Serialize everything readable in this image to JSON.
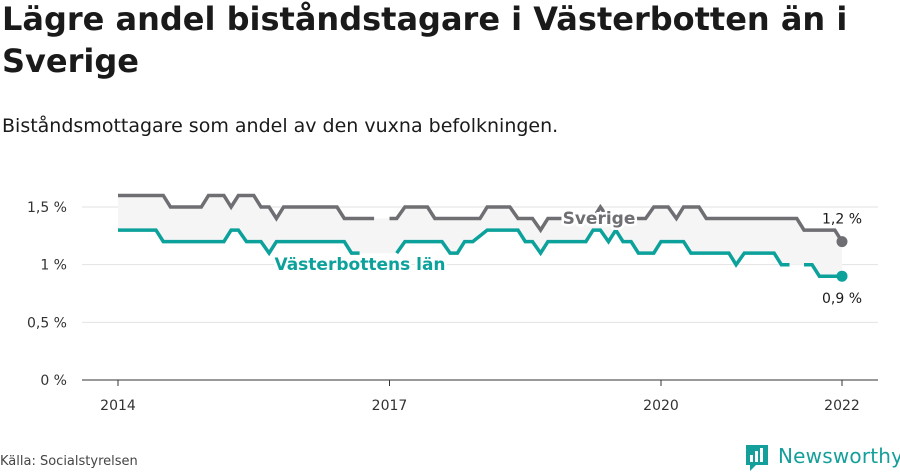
{
  "title": "Lägre andel biståndstagare i Västerbotten än i Sverige",
  "subtitle": "Biståndsmottagare som andel av den vuxna befolkningen.",
  "source": "Källa: Socialstyrelsen",
  "brand": {
    "name": "Newsworthy",
    "icon": "newsworthy-logo-icon",
    "color": "#159f9b"
  },
  "colors": {
    "sverige": "#6e6e73",
    "vasterbotten": "#0ca19b",
    "band": "#f5f5f5",
    "grid": "#e2e2e2"
  },
  "chart_data": {
    "type": "line",
    "title": "Lägre andel biståndstagare i Västerbotten än i Sverige",
    "subtitle": "Biståndsmottagare som andel av den vuxna befolkningen.",
    "xlabel": "",
    "ylabel": "",
    "xlim": [
      2013.8,
      2022.4
    ],
    "ylim": [
      0,
      1.65
    ],
    "x_ticks": [
      {
        "value": 2014,
        "label": "2014"
      },
      {
        "value": 2017,
        "label": "2017"
      },
      {
        "value": 2020,
        "label": "2020"
      },
      {
        "value": 2022,
        "label": "2022"
      }
    ],
    "y_ticks": [
      {
        "value": 0,
        "label": "0 %"
      },
      {
        "value": 0.5,
        "label": "0,5 %"
      },
      {
        "value": 1,
        "label": "1 %"
      },
      {
        "value": 1.5,
        "label": "1,5 %"
      }
    ],
    "grid": true,
    "legend": "inline labels",
    "series": [
      {
        "name": "Sverige",
        "label": "Sverige",
        "end_label": "1,2 %",
        "points": [
          [
            2014,
            1.6
          ],
          [
            2014.5,
            1.6
          ],
          [
            2014.58,
            1.5
          ],
          [
            2014.92,
            1.5
          ],
          [
            2015.0,
            1.6
          ],
          [
            2015.17,
            1.6
          ],
          [
            2015.25,
            1.5
          ],
          [
            2015.33,
            1.6
          ],
          [
            2015.5,
            1.6
          ],
          [
            2015.58,
            1.5
          ],
          [
            2015.67,
            1.5
          ],
          [
            2015.75,
            1.4
          ],
          [
            2015.83,
            1.5
          ],
          [
            2016.42,
            1.5
          ],
          [
            2016.5,
            1.4
          ],
          [
            2016.83,
            1.4
          ],
          [
            2016.92,
            null
          ],
          [
            2017.0,
            1.4
          ],
          [
            2017.08,
            1.4
          ],
          [
            2017.17,
            1.5
          ],
          [
            2017.42,
            1.5
          ],
          [
            2017.5,
            1.4
          ],
          [
            2018.0,
            1.4
          ],
          [
            2018.08,
            1.5
          ],
          [
            2018.33,
            1.5
          ],
          [
            2018.42,
            1.4
          ],
          [
            2018.58,
            1.4
          ],
          [
            2018.67,
            1.3
          ],
          [
            2018.75,
            1.4
          ],
          [
            2019.25,
            1.4
          ],
          [
            2019.33,
            1.5
          ],
          [
            2019.42,
            1.4
          ],
          [
            2019.83,
            1.4
          ],
          [
            2019.92,
            1.5
          ],
          [
            2020.08,
            1.5
          ],
          [
            2020.17,
            1.4
          ],
          [
            2020.25,
            1.5
          ],
          [
            2020.42,
            1.5
          ],
          [
            2020.5,
            1.4
          ],
          [
            2021.5,
            1.4
          ],
          [
            2021.58,
            1.3
          ],
          [
            2021.83,
            1.3
          ],
          [
            2021.92,
            1.3
          ],
          [
            2022.0,
            1.2
          ]
        ]
      },
      {
        "name": "Västerbottens län",
        "label": "Västerbottens län",
        "end_label": "0,9 %",
        "points": [
          [
            2014,
            1.3
          ],
          [
            2014.42,
            1.3
          ],
          [
            2014.5,
            1.2
          ],
          [
            2015.08,
            1.2
          ],
          [
            2015.17,
            1.2
          ],
          [
            2015.25,
            1.3
          ],
          [
            2015.33,
            1.3
          ],
          [
            2015.42,
            1.2
          ],
          [
            2015.58,
            1.2
          ],
          [
            2015.67,
            1.1
          ],
          [
            2015.75,
            1.2
          ],
          [
            2016.08,
            1.2
          ],
          [
            2016.5,
            1.2
          ],
          [
            2016.58,
            1.1
          ],
          [
            2016.67,
            1.1
          ],
          [
            2016.92,
            null
          ],
          [
            2017.08,
            1.1
          ],
          [
            2017.17,
            1.2
          ],
          [
            2017.58,
            1.2
          ],
          [
            2017.67,
            1.1
          ],
          [
            2017.75,
            1.1
          ],
          [
            2017.83,
            1.2
          ],
          [
            2017.92,
            1.2
          ],
          [
            2018.08,
            1.3
          ],
          [
            2018.42,
            1.3
          ],
          [
            2018.5,
            1.2
          ],
          [
            2018.58,
            1.2
          ],
          [
            2018.67,
            1.1
          ],
          [
            2018.75,
            1.2
          ],
          [
            2019.17,
            1.2
          ],
          [
            2019.25,
            1.3
          ],
          [
            2019.33,
            1.3
          ],
          [
            2019.42,
            1.2
          ],
          [
            2019.5,
            1.3
          ],
          [
            2019.58,
            1.2
          ],
          [
            2019.67,
            1.2
          ],
          [
            2019.75,
            1.1
          ],
          [
            2019.92,
            1.1
          ],
          [
            2020.0,
            1.2
          ],
          [
            2020.25,
            1.2
          ],
          [
            2020.33,
            1.1
          ],
          [
            2020.75,
            1.1
          ],
          [
            2020.83,
            1.0
          ],
          [
            2020.92,
            1.1
          ],
          [
            2021.25,
            1.1
          ],
          [
            2021.33,
            1.0
          ],
          [
            2021.42,
            1.0
          ],
          [
            2021.42,
            null
          ],
          [
            2021.58,
            1.0
          ],
          [
            2021.67,
            1.0
          ],
          [
            2021.75,
            0.9
          ],
          [
            2022.0,
            0.9
          ]
        ]
      }
    ]
  }
}
